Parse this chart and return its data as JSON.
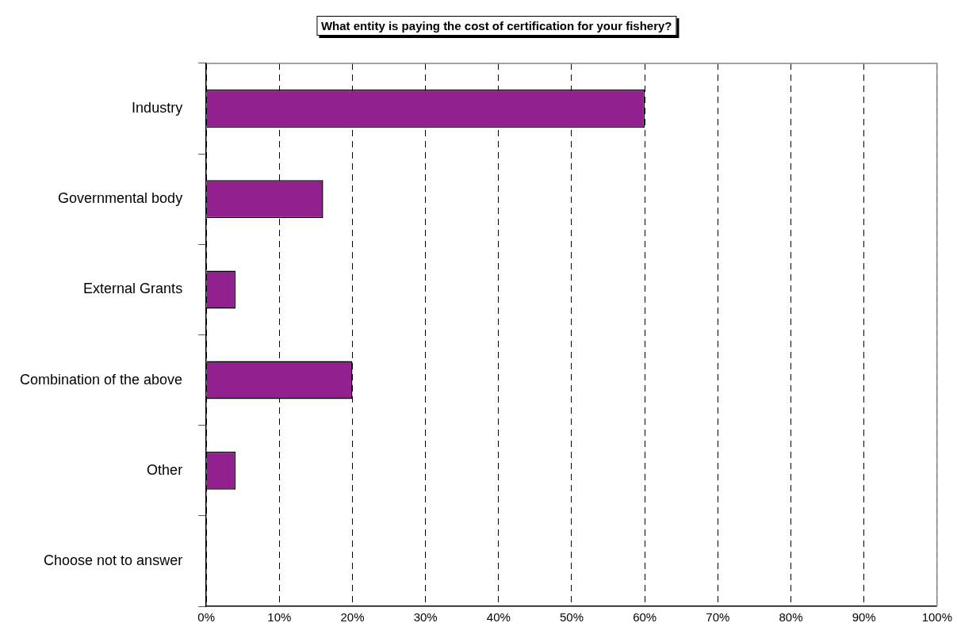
{
  "chart_data": {
    "type": "bar",
    "orientation": "horizontal",
    "title": "What entity is paying the cost of certification for your fishery?",
    "categories": [
      "Industry",
      "Governmental body",
      "External Grants",
      "Combination of the above",
      "Other",
      "Choose not to answer"
    ],
    "values": [
      60,
      16,
      4,
      20,
      4,
      0
    ],
    "color": "#92208f",
    "xlim": [
      0,
      100
    ],
    "xticks": [
      {
        "value": 0,
        "label": "0%"
      },
      {
        "value": 10,
        "label": "10%"
      },
      {
        "value": 20,
        "label": "20%"
      },
      {
        "value": 30,
        "label": "30%"
      },
      {
        "value": 40,
        "label": "40%"
      },
      {
        "value": 50,
        "label": "50%"
      },
      {
        "value": 60,
        "label": "60%"
      },
      {
        "value": 70,
        "label": "70%"
      },
      {
        "value": 80,
        "label": "80%"
      },
      {
        "value": 90,
        "label": "90%"
      },
      {
        "value": 100,
        "label": "100%"
      }
    ],
    "grid": "x",
    "legend": false
  }
}
